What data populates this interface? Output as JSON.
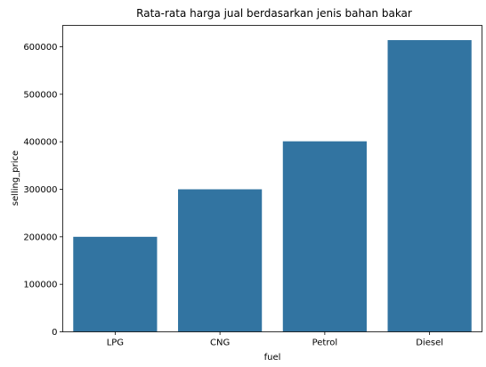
{
  "chart_data": {
    "type": "bar",
    "title": "Rata-rata harga jual berdasarkan jenis bahan bakar",
    "xlabel": "fuel",
    "ylabel": "selling_price",
    "categories": [
      "LPG",
      "CNG",
      "Petrol",
      "Diesel"
    ],
    "values": [
      200000,
      300000,
      401000,
      614000
    ],
    "ylim": [
      0,
      645000
    ],
    "yticks": [
      0,
      100000,
      200000,
      300000,
      400000,
      500000,
      600000
    ],
    "ytick_labels": [
      "0",
      "100000",
      "200000",
      "300000",
      "400000",
      "500000",
      "600000"
    ],
    "grid": false,
    "bar_color": "#3274a1"
  }
}
